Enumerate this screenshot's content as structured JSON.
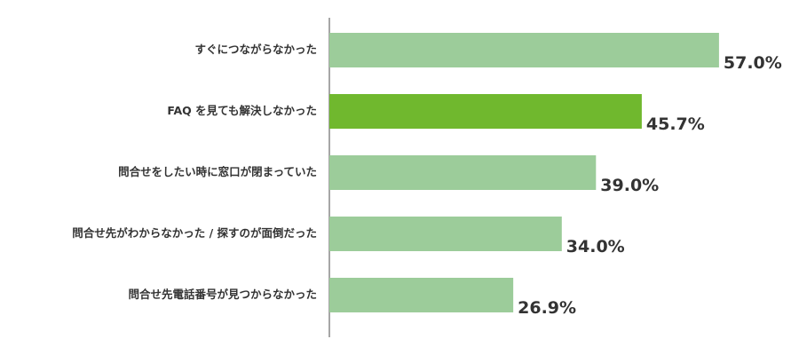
{
  "chart_data": {
    "type": "bar",
    "orientation": "horizontal",
    "categories": [
      "すぐにつながらなかった",
      "FAQ を見ても解決しなかった",
      "問合せをしたい時に窓口が閉まっていた",
      "問合せ先がわからなかった / 探すのが面倒だった",
      "問合せ先電話番号が見つからなかった"
    ],
    "values": [
      57.0,
      45.7,
      39.0,
      34.0,
      26.9
    ],
    "value_labels": [
      "57.0%",
      "45.7%",
      "39.0%",
      "34.0%",
      "26.9%"
    ],
    "colors": [
      "#9ccc9a",
      "#70b82e",
      "#9ccc9a",
      "#9ccc9a",
      "#9ccc9a"
    ]
  }
}
